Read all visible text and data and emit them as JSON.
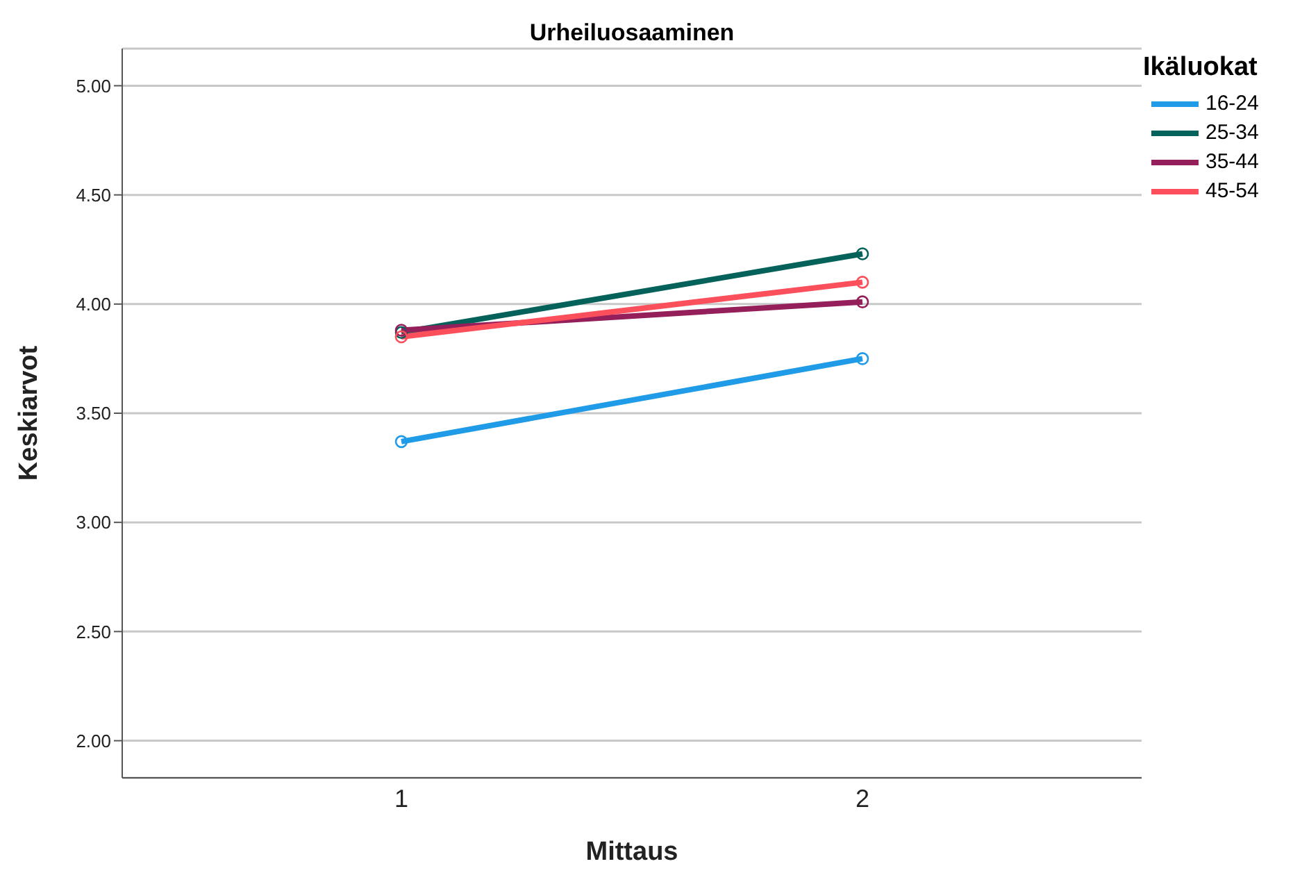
{
  "chart_data": {
    "type": "line",
    "title": "Urheiluosaaminen",
    "xlabel": "Mittaus",
    "ylabel": "Keskiarvot",
    "legend_title": "Ikäluokat",
    "categories": [
      "1",
      "2"
    ],
    "series": [
      {
        "name": "16-24",
        "color": "#1f9be8",
        "values": [
          3.37,
          3.75
        ]
      },
      {
        "name": "25-34",
        "color": "#04625a",
        "values": [
          3.87,
          4.23
        ]
      },
      {
        "name": "35-44",
        "color": "#951f5a",
        "values": [
          3.88,
          4.01
        ]
      },
      {
        "name": "45-54",
        "color": "#fc4f5c",
        "values": [
          3.85,
          4.1
        ]
      }
    ],
    "ylim": [
      1.83,
      5.17
    ],
    "yticks": [
      {
        "value": 2,
        "label": "2.00"
      },
      {
        "value": 2.5,
        "label": "2.50"
      },
      {
        "value": 3,
        "label": "3.00"
      },
      {
        "value": 3.5,
        "label": "3.50"
      },
      {
        "value": 4,
        "label": "4.00"
      },
      {
        "value": 4.5,
        "label": "4.50"
      },
      {
        "value": 5,
        "label": "5.00"
      }
    ],
    "grid": "y",
    "legend": "top right",
    "marker": "circle",
    "line_style": "solid"
  }
}
